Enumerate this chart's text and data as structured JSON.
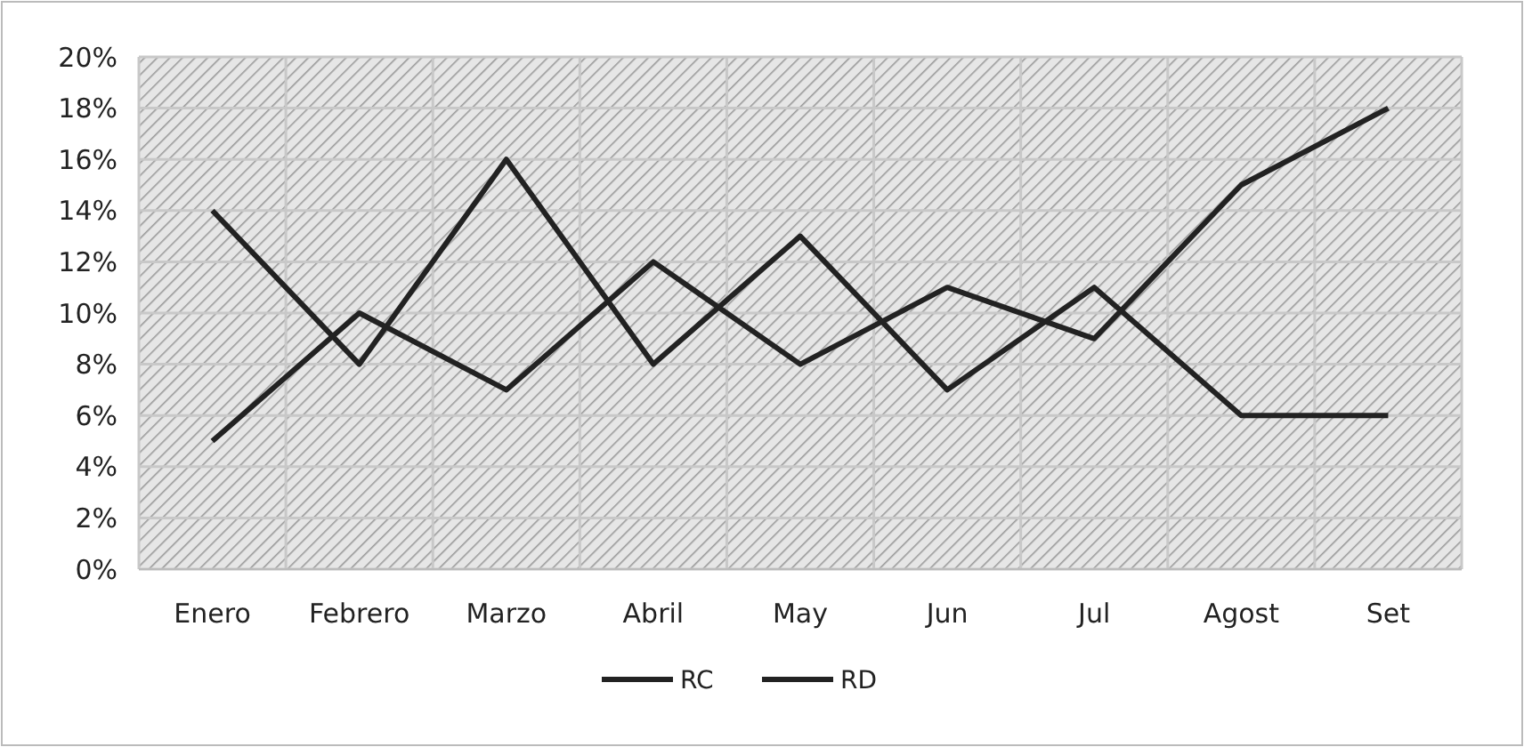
{
  "chart_data": {
    "type": "line",
    "categories": [
      "Enero",
      "Febrero",
      "Marzo",
      "Abril",
      "May",
      "Jun",
      "Jul",
      "Agost",
      "Set"
    ],
    "series": [
      {
        "name": "RC",
        "color": "#222222",
        "values": [
          14,
          8,
          16,
          8,
          13,
          7,
          11,
          6,
          6
        ]
      },
      {
        "name": "RD",
        "color": "#222222",
        "values": [
          5,
          10,
          7,
          12,
          8,
          11,
          9,
          15,
          18
        ]
      }
    ],
    "ylim": [
      0,
      20
    ],
    "yticks": [
      {
        "value": 0,
        "label": "0%"
      },
      {
        "value": 2,
        "label": "2%"
      },
      {
        "value": 4,
        "label": "4%"
      },
      {
        "value": 6,
        "label": "6%"
      },
      {
        "value": 8,
        "label": "8%"
      },
      {
        "value": 10,
        "label": "10%"
      },
      {
        "value": 12,
        "label": "12%"
      },
      {
        "value": 14,
        "label": "14%"
      },
      {
        "value": 16,
        "label": "16%"
      },
      {
        "value": 18,
        "label": "18%"
      },
      {
        "value": 20,
        "label": "20%"
      }
    ],
    "grid": true,
    "legend": "bottom",
    "marker": "none",
    "line_style": "solid"
  }
}
